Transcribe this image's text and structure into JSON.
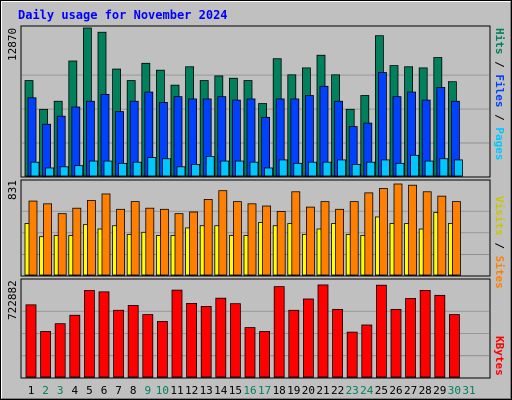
{
  "title": "Daily usage for November 2024",
  "colors": {
    "background": "#c0c0c0",
    "title": "#0000ff",
    "hits": "#00805c",
    "files": "#0040ff",
    "pages": "#00c8ff",
    "visits": "#ffff00",
    "sites": "#ff8000",
    "kbytes": "#ff0000",
    "weekend_label": "#00805c",
    "weekday_label": "#000000"
  },
  "legend": {
    "top": {
      "pages": "Pages",
      "sep1": " / ",
      "files": "Files",
      "sep2": " / ",
      "hits": "Hits"
    },
    "middle": {
      "sites": "Sites",
      "sep": " / ",
      "visits": "Visits"
    },
    "bottom": {
      "kbytes": "KBytes"
    }
  },
  "axis_max": {
    "top": "12870",
    "middle": "831",
    "bottom": "722882"
  },
  "chart_data": [
    {
      "type": "bar",
      "title": "Daily usage for November 2024",
      "categories": [
        "1",
        "2",
        "3",
        "4",
        "5",
        "6",
        "7",
        "8",
        "9",
        "10",
        "11",
        "12",
        "13",
        "14",
        "15",
        "16",
        "17",
        "18",
        "19",
        "20",
        "21",
        "22",
        "23",
        "24",
        "25",
        "26",
        "27",
        "28",
        "29",
        "30",
        "31"
      ],
      "weekend_days": [
        2,
        3,
        9,
        10,
        16,
        17,
        23,
        24,
        30,
        31
      ],
      "ylim": [
        0,
        12870
      ],
      "series": [
        {
          "name": "Hits",
          "values": [
            8300,
            5800,
            6500,
            10000,
            12870,
            12500,
            9300,
            8300,
            9800,
            9200,
            7900,
            9500,
            8300,
            8700,
            8500,
            8300,
            6300,
            10200,
            8800,
            9400,
            10500,
            8800,
            5800,
            7000,
            12200,
            9600,
            9500,
            9400,
            10300,
            8200,
            0
          ]
        },
        {
          "name": "Files",
          "values": [
            6800,
            4500,
            5200,
            6000,
            6500,
            7100,
            5600,
            6500,
            7300,
            6400,
            6900,
            6700,
            6700,
            6900,
            6600,
            6700,
            5100,
            6700,
            6700,
            7000,
            7800,
            6500,
            4300,
            4600,
            9000,
            6900,
            7300,
            6600,
            7700,
            6500,
            0
          ]
        },
        {
          "name": "Pages",
          "values": [
            1200,
            700,
            800,
            900,
            1300,
            1300,
            1100,
            1200,
            1600,
            1500,
            800,
            1000,
            1700,
            1300,
            1300,
            1200,
            700,
            1400,
            1100,
            1200,
            1200,
            1400,
            1000,
            1200,
            1400,
            1100,
            1800,
            1300,
            1500,
            1400,
            0
          ]
        }
      ]
    },
    {
      "type": "bar",
      "categories": [
        "1",
        "2",
        "3",
        "4",
        "5",
        "6",
        "7",
        "8",
        "9",
        "10",
        "11",
        "12",
        "13",
        "14",
        "15",
        "16",
        "17",
        "18",
        "19",
        "20",
        "21",
        "22",
        "23",
        "24",
        "25",
        "26",
        "27",
        "28",
        "29",
        "30",
        "31"
      ],
      "ylim": [
        0,
        831
      ],
      "series": [
        {
          "name": "Sites",
          "values": [
            675,
            650,
            560,
            610,
            680,
            740,
            600,
            670,
            610,
            600,
            560,
            575,
            690,
            770,
            670,
            650,
            630,
            580,
            760,
            620,
            670,
            600,
            670,
            750,
            790,
            831,
            820,
            760,
            720,
            670,
            0
          ]
        },
        {
          "name": "Visits",
          "values": [
            470,
            350,
            360,
            360,
            460,
            420,
            450,
            370,
            390,
            360,
            360,
            430,
            450,
            450,
            360,
            360,
            480,
            450,
            470,
            370,
            420,
            470,
            370,
            360,
            530,
            470,
            470,
            420,
            570,
            470,
            0
          ]
        }
      ]
    },
    {
      "type": "bar",
      "categories": [
        "1",
        "2",
        "3",
        "4",
        "5",
        "6",
        "7",
        "8",
        "9",
        "10",
        "11",
        "12",
        "13",
        "14",
        "15",
        "16",
        "17",
        "18",
        "19",
        "20",
        "21",
        "22",
        "23",
        "24",
        "25",
        "26",
        "27",
        "28",
        "29",
        "30",
        "31"
      ],
      "ylim": [
        0,
        722882
      ],
      "series": [
        {
          "name": "KBytes",
          "values": [
            555000,
            350000,
            410000,
            475000,
            665000,
            655000,
            513000,
            550000,
            480000,
            427000,
            668000,
            566000,
            543000,
            606000,
            564000,
            380000,
            350000,
            695000,
            513000,
            600000,
            708000,
            520000,
            345000,
            400000,
            706000,
            520000,
            604000,
            666000,
            628000,
            480000,
            0
          ]
        }
      ]
    }
  ]
}
